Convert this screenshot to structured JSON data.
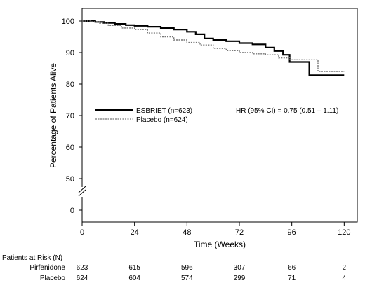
{
  "chart_data": {
    "type": "line",
    "xlabel": "Time (Weeks)",
    "ylabel": "Percentage of Patients Alive",
    "x_ticks": [
      0,
      24,
      48,
      72,
      96,
      120
    ],
    "y_ticks": [
      0,
      50,
      60,
      70,
      80,
      90,
      100
    ],
    "xlim": [
      0,
      126
    ],
    "ylim": [
      45,
      103
    ],
    "y_axis_break": "between 0 and 50",
    "step_function": true,
    "legend_position": "upper-left",
    "series": [
      {
        "name": "ESBRIET (n=623)",
        "color": "#000000",
        "style": "solid",
        "points": [
          [
            0,
            100
          ],
          [
            3,
            100
          ],
          [
            6,
            99.7
          ],
          [
            10,
            99.4
          ],
          [
            15,
            99.1
          ],
          [
            20,
            98.7
          ],
          [
            24,
            98.5
          ],
          [
            30,
            98.2
          ],
          [
            36,
            97.8
          ],
          [
            42,
            97.3
          ],
          [
            48,
            96.6
          ],
          [
            52,
            95.8
          ],
          [
            56,
            94.5
          ],
          [
            60,
            94.0
          ],
          [
            66,
            93.6
          ],
          [
            72,
            93.0
          ],
          [
            78,
            92.6
          ],
          [
            84,
            91.6
          ],
          [
            88,
            90.5
          ],
          [
            92,
            89.3
          ],
          [
            95,
            87.0
          ],
          [
            98,
            87.0
          ],
          [
            104,
            87.0
          ],
          [
            104,
            82.8
          ],
          [
            120,
            82.8
          ]
        ]
      },
      {
        "name": "Placebo (n=624)",
        "color": "#777777",
        "style": "dotted",
        "points": [
          [
            0,
            100
          ],
          [
            4,
            99.8
          ],
          [
            8,
            99.3
          ],
          [
            12,
            98.6
          ],
          [
            18,
            97.8
          ],
          [
            24,
            97.3
          ],
          [
            30,
            96.2
          ],
          [
            36,
            95.0
          ],
          [
            42,
            94.0
          ],
          [
            48,
            93.2
          ],
          [
            54,
            92.4
          ],
          [
            60,
            91.3
          ],
          [
            66,
            90.6
          ],
          [
            72,
            90.0
          ],
          [
            78,
            89.6
          ],
          [
            84,
            89.3
          ],
          [
            90,
            88.3
          ],
          [
            95,
            87.7
          ],
          [
            100,
            87.7
          ],
          [
            108,
            87.7
          ],
          [
            108,
            84.0
          ],
          [
            120,
            84.0
          ]
        ]
      }
    ],
    "annotation": "HR (95% CI) = 0.75 (0.51 – 1.11)"
  },
  "risk_table": {
    "title": "Patients at Risk (N)",
    "rows": [
      {
        "label": "Pirfenidone",
        "values": [
          "623",
          "615",
          "596",
          "307",
          "66",
          "2"
        ]
      },
      {
        "label": "Placebo",
        "values": [
          "624",
          "604",
          "574",
          "299",
          "71",
          "4"
        ]
      }
    ]
  }
}
